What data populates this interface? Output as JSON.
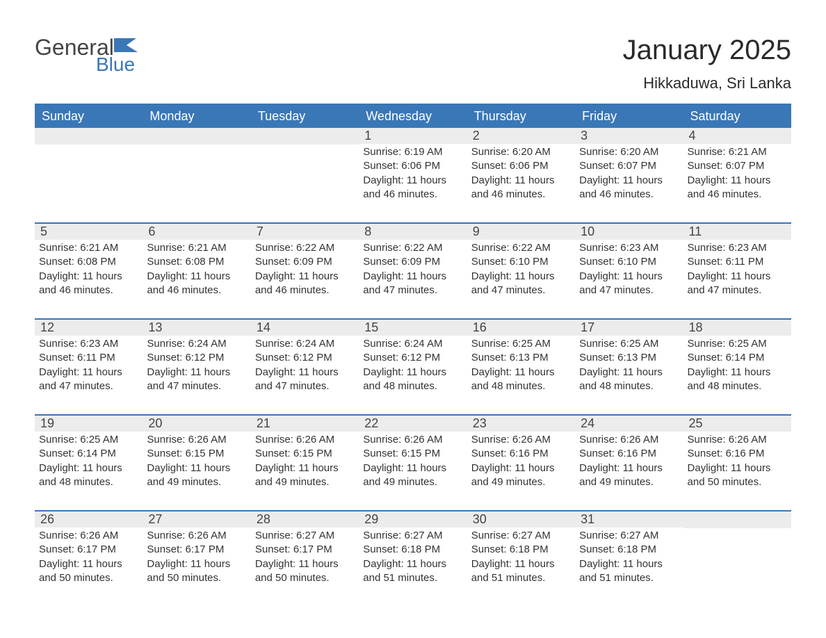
{
  "branding": {
    "logo_text_1": "General",
    "logo_text_2": "Blue",
    "logo_color_1": "#444444",
    "logo_color_2": "#3a77b7",
    "flag_color": "#3a77b7"
  },
  "header": {
    "title": "January 2025",
    "location": "Hikkaduwa, Sri Lanka",
    "title_fontsize": 40,
    "subtitle_fontsize": 22
  },
  "calendar": {
    "type": "table",
    "accent_color": "#3a77b7",
    "daynum_bg": "#ececec",
    "text_color": "#333333",
    "day_headers": [
      "Sunday",
      "Monday",
      "Tuesday",
      "Wednesday",
      "Thursday",
      "Friday",
      "Saturday"
    ],
    "labels": {
      "sunrise": "Sunrise: ",
      "sunset": "Sunset: ",
      "daylight_prefix": "Daylight: "
    },
    "weeks": [
      [
        null,
        null,
        null,
        {
          "n": "1",
          "sunrise": "6:19 AM",
          "sunset": "6:06 PM",
          "daylight": "11 hours and 46 minutes."
        },
        {
          "n": "2",
          "sunrise": "6:20 AM",
          "sunset": "6:06 PM",
          "daylight": "11 hours and 46 minutes."
        },
        {
          "n": "3",
          "sunrise": "6:20 AM",
          "sunset": "6:07 PM",
          "daylight": "11 hours and 46 minutes."
        },
        {
          "n": "4",
          "sunrise": "6:21 AM",
          "sunset": "6:07 PM",
          "daylight": "11 hours and 46 minutes."
        }
      ],
      [
        {
          "n": "5",
          "sunrise": "6:21 AM",
          "sunset": "6:08 PM",
          "daylight": "11 hours and 46 minutes."
        },
        {
          "n": "6",
          "sunrise": "6:21 AM",
          "sunset": "6:08 PM",
          "daylight": "11 hours and 46 minutes."
        },
        {
          "n": "7",
          "sunrise": "6:22 AM",
          "sunset": "6:09 PM",
          "daylight": "11 hours and 46 minutes."
        },
        {
          "n": "8",
          "sunrise": "6:22 AM",
          "sunset": "6:09 PM",
          "daylight": "11 hours and 47 minutes."
        },
        {
          "n": "9",
          "sunrise": "6:22 AM",
          "sunset": "6:10 PM",
          "daylight": "11 hours and 47 minutes."
        },
        {
          "n": "10",
          "sunrise": "6:23 AM",
          "sunset": "6:10 PM",
          "daylight": "11 hours and 47 minutes."
        },
        {
          "n": "11",
          "sunrise": "6:23 AM",
          "sunset": "6:11 PM",
          "daylight": "11 hours and 47 minutes."
        }
      ],
      [
        {
          "n": "12",
          "sunrise": "6:23 AM",
          "sunset": "6:11 PM",
          "daylight": "11 hours and 47 minutes."
        },
        {
          "n": "13",
          "sunrise": "6:24 AM",
          "sunset": "6:12 PM",
          "daylight": "11 hours and 47 minutes."
        },
        {
          "n": "14",
          "sunrise": "6:24 AM",
          "sunset": "6:12 PM",
          "daylight": "11 hours and 47 minutes."
        },
        {
          "n": "15",
          "sunrise": "6:24 AM",
          "sunset": "6:12 PM",
          "daylight": "11 hours and 48 minutes."
        },
        {
          "n": "16",
          "sunrise": "6:25 AM",
          "sunset": "6:13 PM",
          "daylight": "11 hours and 48 minutes."
        },
        {
          "n": "17",
          "sunrise": "6:25 AM",
          "sunset": "6:13 PM",
          "daylight": "11 hours and 48 minutes."
        },
        {
          "n": "18",
          "sunrise": "6:25 AM",
          "sunset": "6:14 PM",
          "daylight": "11 hours and 48 minutes."
        }
      ],
      [
        {
          "n": "19",
          "sunrise": "6:25 AM",
          "sunset": "6:14 PM",
          "daylight": "11 hours and 48 minutes."
        },
        {
          "n": "20",
          "sunrise": "6:26 AM",
          "sunset": "6:15 PM",
          "daylight": "11 hours and 49 minutes."
        },
        {
          "n": "21",
          "sunrise": "6:26 AM",
          "sunset": "6:15 PM",
          "daylight": "11 hours and 49 minutes."
        },
        {
          "n": "22",
          "sunrise": "6:26 AM",
          "sunset": "6:15 PM",
          "daylight": "11 hours and 49 minutes."
        },
        {
          "n": "23",
          "sunrise": "6:26 AM",
          "sunset": "6:16 PM",
          "daylight": "11 hours and 49 minutes."
        },
        {
          "n": "24",
          "sunrise": "6:26 AM",
          "sunset": "6:16 PM",
          "daylight": "11 hours and 49 minutes."
        },
        {
          "n": "25",
          "sunrise": "6:26 AM",
          "sunset": "6:16 PM",
          "daylight": "11 hours and 50 minutes."
        }
      ],
      [
        {
          "n": "26",
          "sunrise": "6:26 AM",
          "sunset": "6:17 PM",
          "daylight": "11 hours and 50 minutes."
        },
        {
          "n": "27",
          "sunrise": "6:26 AM",
          "sunset": "6:17 PM",
          "daylight": "11 hours and 50 minutes."
        },
        {
          "n": "28",
          "sunrise": "6:27 AM",
          "sunset": "6:17 PM",
          "daylight": "11 hours and 50 minutes."
        },
        {
          "n": "29",
          "sunrise": "6:27 AM",
          "sunset": "6:18 PM",
          "daylight": "11 hours and 51 minutes."
        },
        {
          "n": "30",
          "sunrise": "6:27 AM",
          "sunset": "6:18 PM",
          "daylight": "11 hours and 51 minutes."
        },
        {
          "n": "31",
          "sunrise": "6:27 AM",
          "sunset": "6:18 PM",
          "daylight": "11 hours and 51 minutes."
        },
        null
      ]
    ]
  }
}
